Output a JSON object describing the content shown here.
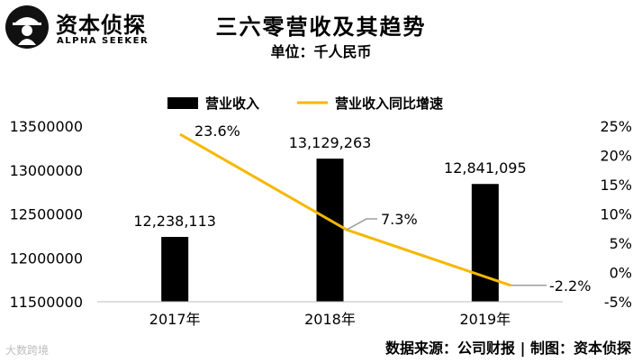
{
  "brand": {
    "name_cn": "资本侦探",
    "name_en": "ALPHA SEEKER"
  },
  "header": {
    "title": "三六零营收及其趋势",
    "unit": "单位：千人民币"
  },
  "footer": {
    "source": "数据来源：公司财报 | 制图：资本侦探",
    "watermark": "大数跨境"
  },
  "colors": {
    "bar": "#000000",
    "line": "#f5b800",
    "callout": "#9e9e9e"
  },
  "chart_data": {
    "type": "bar",
    "categories": [
      "2017年",
      "2018年",
      "2019年"
    ],
    "series": [
      {
        "name": "营业收入",
        "type": "bar",
        "axis": "left",
        "values": [
          12238113,
          13129263,
          12841095
        ],
        "labels": [
          "12,238,113",
          "13,129,263",
          "12,841,095"
        ]
      },
      {
        "name": "营业收入同比增速",
        "type": "line",
        "axis": "right",
        "values": [
          23.6,
          7.3,
          -2.2
        ],
        "labels": [
          "23.6%",
          "7.3%",
          "-2.2%"
        ]
      }
    ],
    "left_axis": {
      "min": 11500000,
      "max": 13500000,
      "ticks": [
        11500000,
        12000000,
        12500000,
        13000000,
        13500000
      ],
      "tick_labels": [
        "11500000",
        "12000000",
        "12500000",
        "13000000",
        "13500000"
      ]
    },
    "right_axis": {
      "min": -5,
      "max": 25,
      "ticks": [
        -5,
        0,
        5,
        10,
        15,
        20,
        25
      ],
      "tick_labels": [
        "-5%",
        "0%",
        "5%",
        "10%",
        "15%",
        "20%",
        "25%"
      ]
    },
    "legend": {
      "position": "top"
    },
    "grid": false
  }
}
